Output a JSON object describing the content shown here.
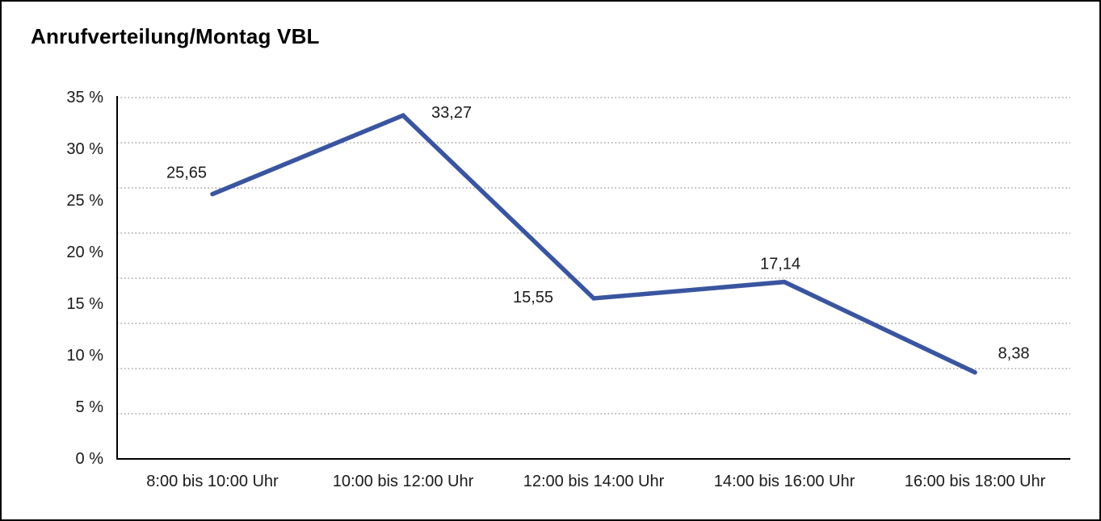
{
  "title": "Anrufverteilung/Montag VBL",
  "chart_data": {
    "type": "line",
    "title": "Anrufverteilung/Montag VBL",
    "categories": [
      "8:00 bis 10:00 Uhr",
      "10:00 bis 12:00 Uhr",
      "12:00 bis 14:00 Uhr",
      "14:00 bis 16:00 Uhr",
      "16:00 bis 18:00 Uhr"
    ],
    "values": [
      25.65,
      33.27,
      15.55,
      17.14,
      8.38
    ],
    "point_labels": [
      "25,65",
      "33,27",
      "15,55",
      "17,14",
      "8,38"
    ],
    "y_tick_labels": [
      "35 %",
      "30 %",
      "25 %",
      "20 %",
      "15 %",
      "10 %",
      "5 %",
      "0 %"
    ],
    "ylim": [
      0,
      35
    ],
    "xlabel": "",
    "ylabel": "",
    "legend": "none",
    "grid": "horizontal-dotted",
    "num_gridline_intervals": 8,
    "line_color": "#3A55A0",
    "axis_color": "#000000",
    "gridline_color": "#747474",
    "text_color": "#1a1a1a"
  }
}
